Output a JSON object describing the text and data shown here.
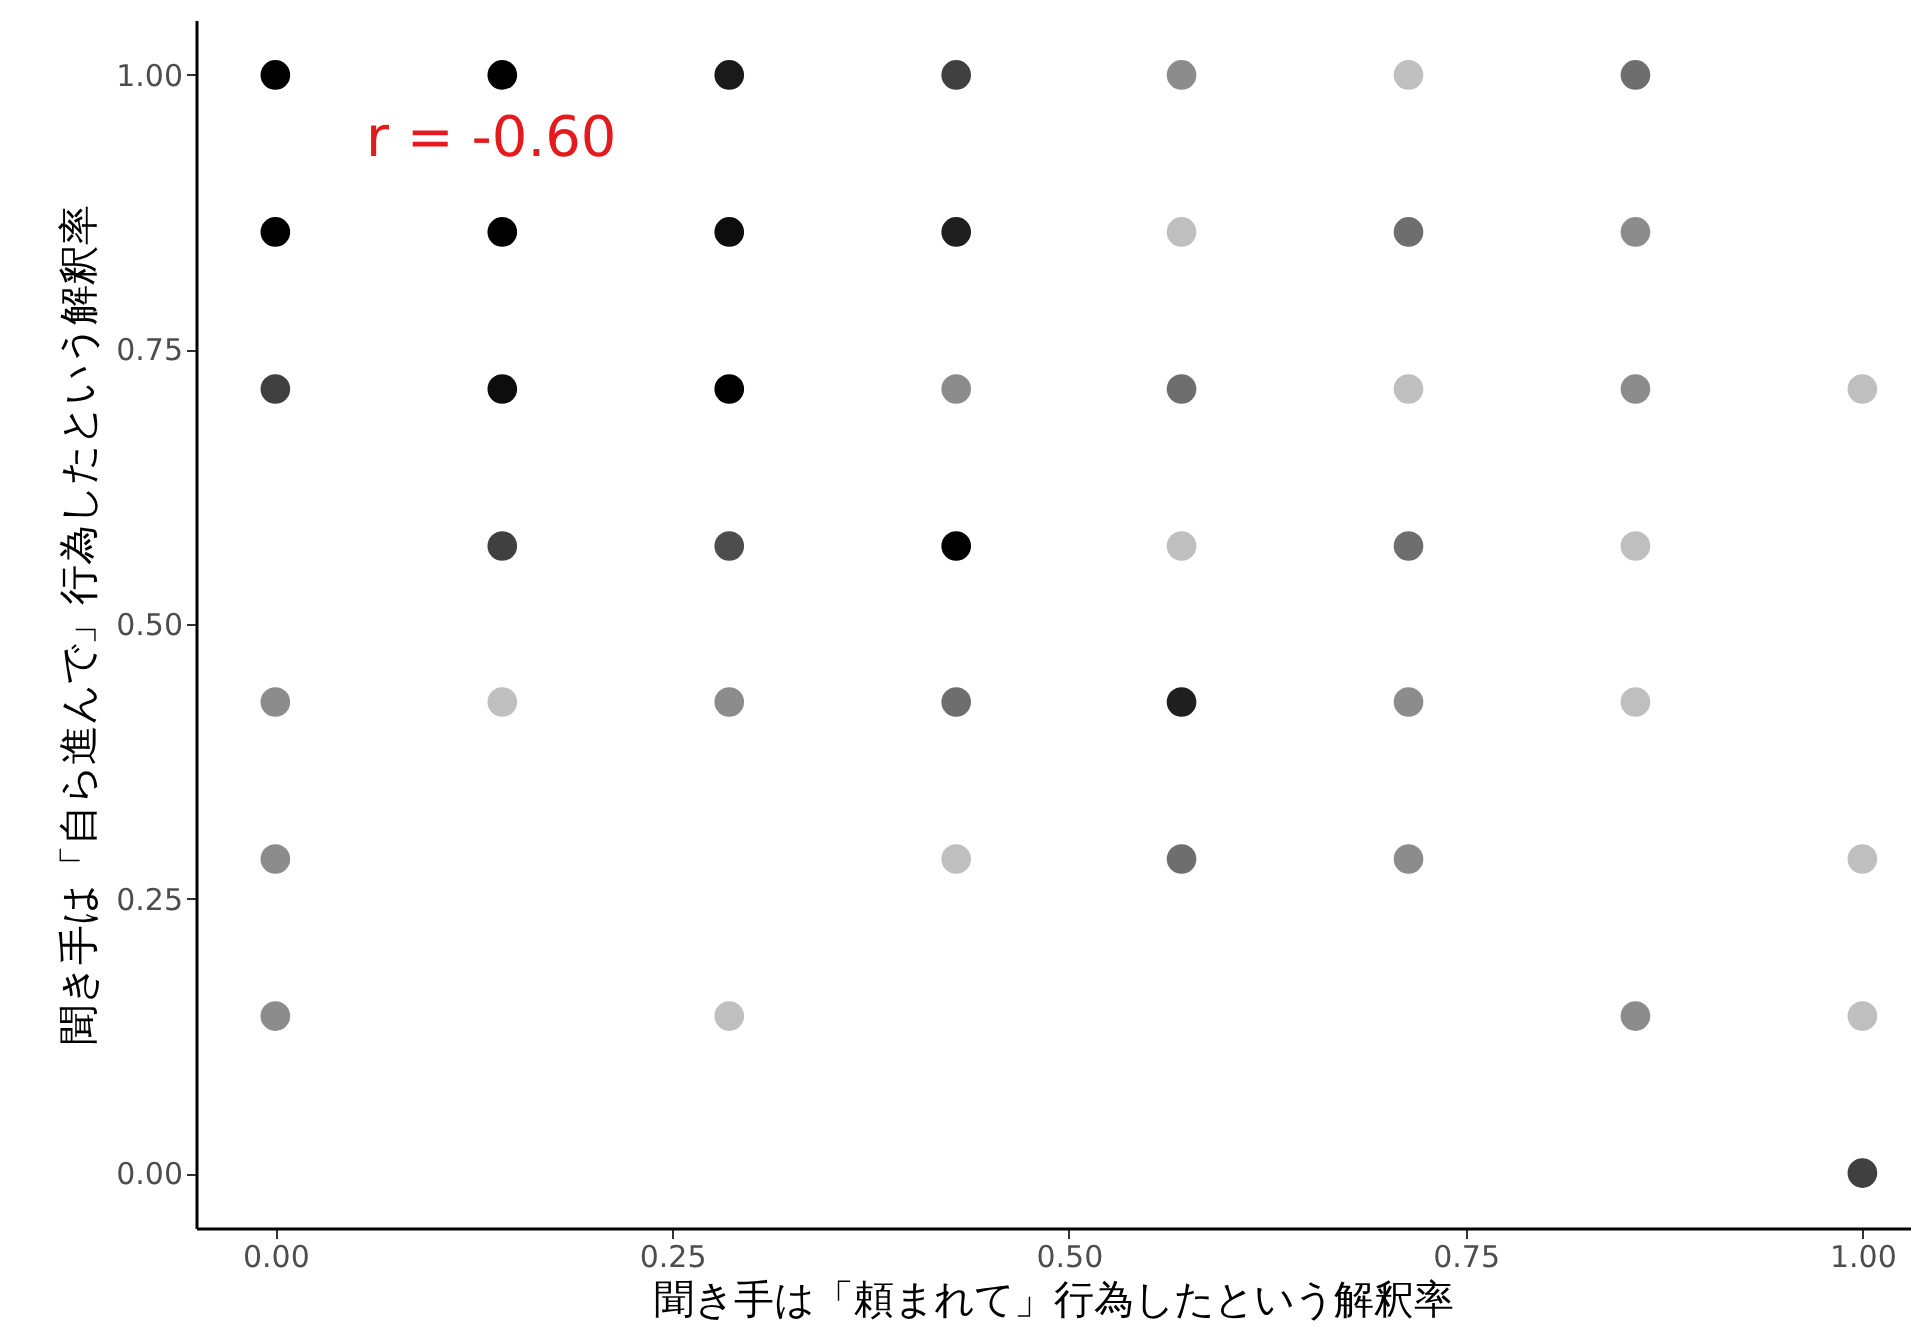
{
  "chart_data": {
    "type": "scatter",
    "xlabel": "聞き手は「頼まれて」行為したという解釈率",
    "ylabel": "聞き手は「自ら進んで」行為したという解釈率",
    "annotations": [
      "r = -0.60"
    ],
    "xlim": [
      -0.05,
      1.03
    ],
    "ylim": [
      -0.05,
      1.05
    ],
    "xticks": [
      {
        "value": 0,
        "label": "0.00"
      },
      {
        "value": 0.25,
        "label": "0.25"
      },
      {
        "value": 0.5,
        "label": "0.50"
      },
      {
        "value": 0.75,
        "label": "0.75"
      },
      {
        "value": 1,
        "label": "1.00"
      }
    ],
    "yticks": [
      {
        "value": 0,
        "label": "0.00"
      },
      {
        "value": 0.25,
        "label": "0.25"
      },
      {
        "value": 0.5,
        "label": "0.50"
      },
      {
        "value": 0.75,
        "label": "0.75"
      },
      {
        "value": 1,
        "label": "1.00"
      }
    ],
    "marker": "circle",
    "grid": false,
    "series": [
      {
        "x": [
          0,
          0.143,
          0.286,
          0.429,
          0.571,
          0.714,
          0.857,
          0,
          0.143,
          0.286,
          0.429,
          0.571,
          0.714,
          0.857,
          0,
          0.143,
          0.286,
          0.429,
          0.571,
          0.714,
          0.857,
          1,
          0.143,
          0.286,
          0.429,
          0.571,
          0.714,
          0.857,
          0,
          0.143,
          0.286,
          0.429,
          0.571,
          0.714,
          0.857,
          0,
          0.429,
          0.571,
          0.714,
          1,
          0,
          0.286,
          0.857,
          1,
          1
        ],
        "values": [
          1,
          1,
          1,
          1,
          1,
          1,
          1,
          0.857,
          0.857,
          0.857,
          0.857,
          0.857,
          0.857,
          0.857,
          0.714,
          0.714,
          0.714,
          0.714,
          0.714,
          0.714,
          0.714,
          0.714,
          0.571,
          0.571,
          0.571,
          0.571,
          0.571,
          0.571,
          0.429,
          0.429,
          0.429,
          0.429,
          0.429,
          0.429,
          0.429,
          0.286,
          0.286,
          0.286,
          0.286,
          0.286,
          0.143,
          0.143,
          0.143,
          0.143,
          0
        ],
        "colors": [
          "#000000",
          "#000000",
          "#1a1a1a",
          "#404040",
          "#8c8c8c",
          "#bfbfbf",
          "#6e6e6e",
          "#000000",
          "#000000",
          "#0d0d0d",
          "#1f1f1f",
          "#bfbfbf",
          "#6e6e6e",
          "#8c8c8c",
          "#404040",
          "#0d0d0d",
          "#000000",
          "#8c8c8c",
          "#6e6e6e",
          "#bfbfbf",
          "#8c8c8c",
          "#bfbfbf",
          "#404040",
          "#4d4d4d",
          "#000000",
          "#bfbfbf",
          "#6e6e6e",
          "#bfbfbf",
          "#8c8c8c",
          "#bfbfbf",
          "#8c8c8c",
          "#6e6e6e",
          "#1f1f1f",
          "#8c8c8c",
          "#bfbfbf",
          "#8c8c8c",
          "#bfbfbf",
          "#6e6e6e",
          "#8c8c8c",
          "#bfbfbf",
          "#8c8c8c",
          "#bfbfbf",
          "#8c8c8c",
          "#bfbfbf",
          "#404040"
        ]
      }
    ]
  }
}
